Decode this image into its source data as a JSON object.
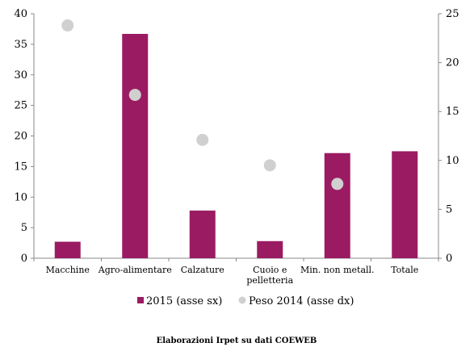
{
  "chart_data": {
    "type": "bar",
    "categories": [
      [
        "Macchine"
      ],
      [
        "Agro-alimentare"
      ],
      [
        "Calzature"
      ],
      [
        "Cuoio e",
        "pelletteria"
      ],
      [
        "Min. non metall."
      ],
      [
        "Totale"
      ]
    ],
    "series": [
      {
        "name": "2015 (asse sx)",
        "kind": "bar",
        "axis": "left",
        "color": "#9b1b62",
        "values": [
          2.7,
          36.7,
          7.8,
          2.8,
          17.2,
          17.5
        ]
      },
      {
        "name": "Peso 2014 (asse dx)",
        "kind": "marker",
        "axis": "right",
        "color": "#d0d0d0",
        "values": [
          23.8,
          16.7,
          12.1,
          9.5,
          7.6,
          null
        ]
      }
    ],
    "y_left": {
      "min": 0,
      "max": 40,
      "ticks": [
        "0",
        "5",
        "10",
        "15",
        "20",
        "25",
        "30",
        "35",
        "40"
      ]
    },
    "y_right": {
      "min": 0,
      "max": 25,
      "ticks": [
        "0",
        "5",
        "10",
        "15",
        "20",
        "25"
      ]
    },
    "grid": false,
    "legend_position": "bottom"
  },
  "source_note": "Elaborazioni Irpet su dati COEWEB"
}
